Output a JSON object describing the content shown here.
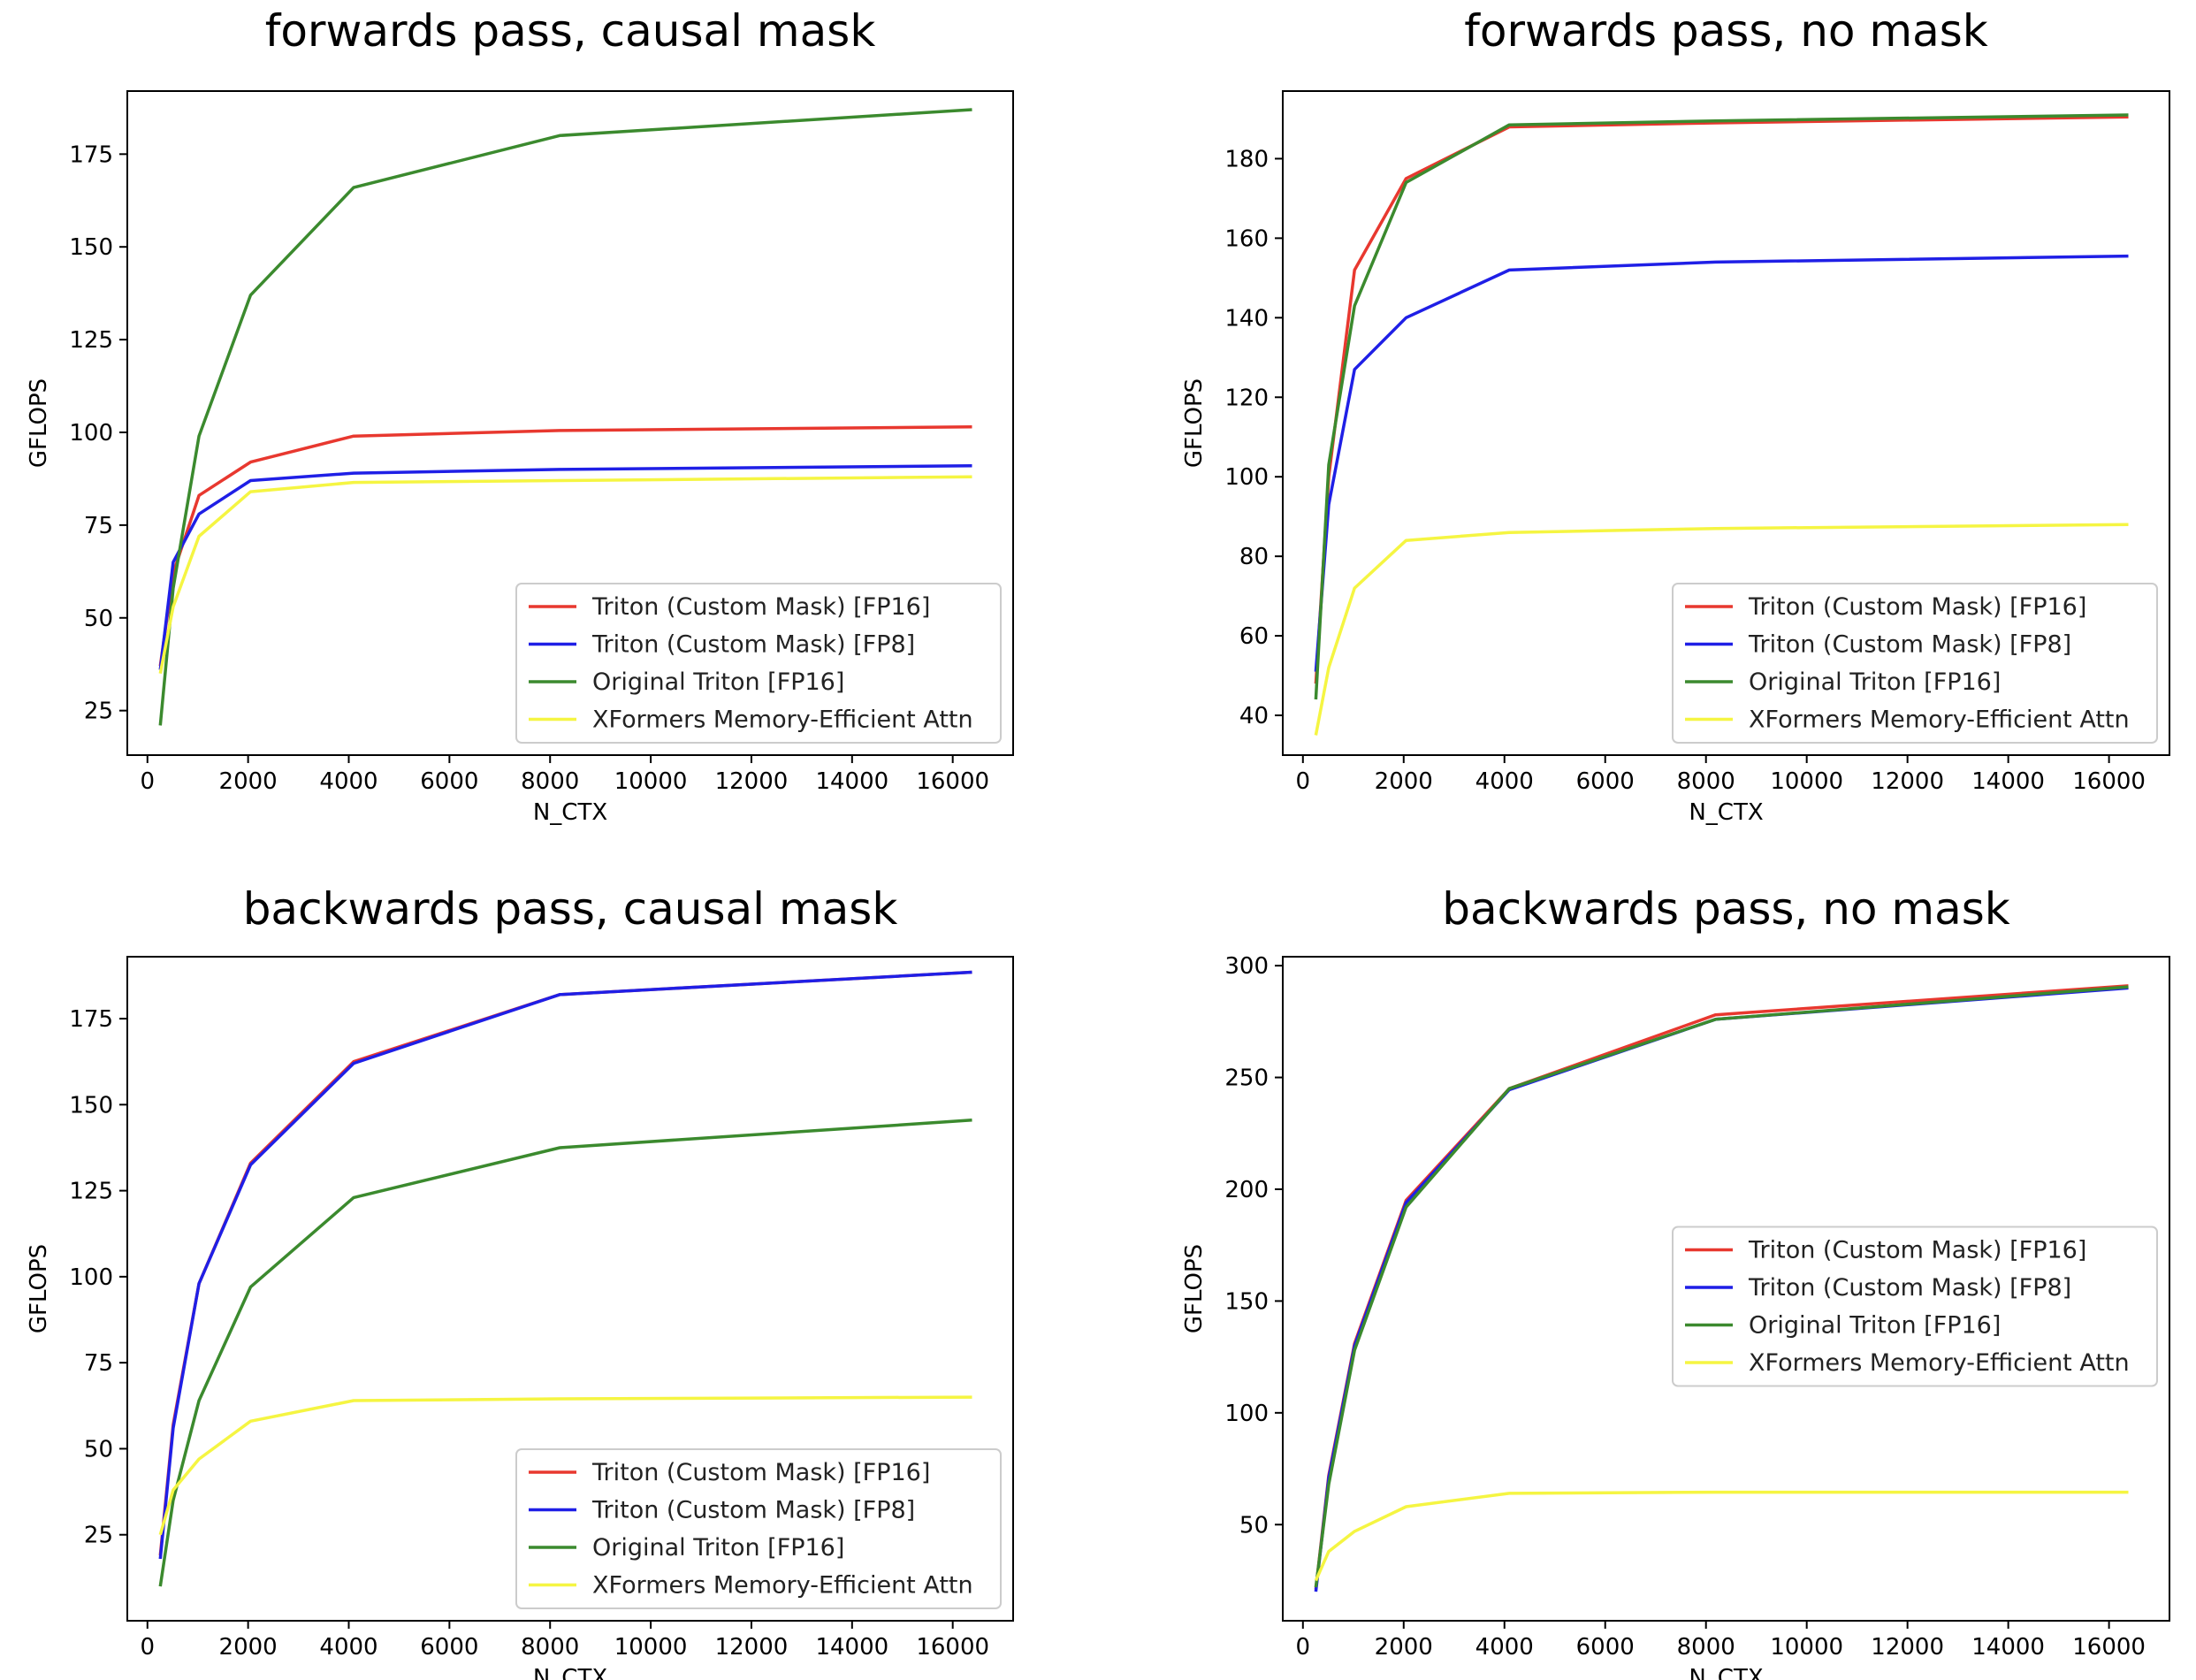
{
  "chart_data": [
    {
      "type": "line",
      "title": "forwards pass, causal mask",
      "xlabel": "N_CTX",
      "ylabel": "GFLOPS",
      "xlim": [
        -400,
        17200
      ],
      "ylim": [
        13,
        192
      ],
      "xticks": [
        0,
        2000,
        4000,
        6000,
        8000,
        10000,
        12000,
        14000,
        16000
      ],
      "yticks": [
        25,
        50,
        75,
        100,
        125,
        150,
        175
      ],
      "legend": "lower-right",
      "x": [
        256,
        512,
        1024,
        2048,
        4096,
        8192,
        16384
      ],
      "series": [
        {
          "name": "Triton (Custom Mask) [FP16]",
          "color": "#e8382f",
          "values": [
            37,
            62,
            83,
            92,
            99,
            100.5,
            101.5
          ]
        },
        {
          "name": "Triton (Custom Mask) [FP8]",
          "color": "#1f1fe6",
          "values": [
            36,
            65,
            78,
            87,
            89,
            90,
            91
          ]
        },
        {
          "name": "Original Triton [FP16]",
          "color": "#3b8a2e",
          "values": [
            21,
            58,
            99,
            137,
            166,
            180,
            187
          ]
        },
        {
          "name": "XFormers Memory-Efficient Attn",
          "color": "#f5f542",
          "values": [
            35,
            53,
            72,
            84,
            86.5,
            87,
            88
          ]
        }
      ]
    },
    {
      "type": "line",
      "title": "forwards pass, no mask",
      "xlabel": "N_CTX",
      "ylabel": "GFLOPS",
      "xlim": [
        -400,
        17200
      ],
      "ylim": [
        30,
        197
      ],
      "xticks": [
        0,
        2000,
        4000,
        6000,
        8000,
        10000,
        12000,
        14000,
        16000
      ],
      "yticks": [
        40,
        60,
        80,
        100,
        120,
        140,
        160,
        180
      ],
      "legend": "lower-right",
      "x": [
        256,
        512,
        1024,
        2048,
        4096,
        8192,
        16384
      ],
      "series": [
        {
          "name": "Triton (Custom Mask) [FP16]",
          "color": "#e8382f",
          "values": [
            48,
            100,
            152,
            175,
            188,
            189,
            190.5
          ]
        },
        {
          "name": "Triton (Custom Mask) [FP8]",
          "color": "#1f1fe6",
          "values": [
            51,
            93,
            127,
            140,
            152,
            154,
            155.5
          ]
        },
        {
          "name": "Original Triton [FP16]",
          "color": "#3b8a2e",
          "values": [
            44,
            103,
            143,
            174,
            188.5,
            189.5,
            191
          ]
        },
        {
          "name": "XFormers Memory-Efficient Attn",
          "color": "#f5f542",
          "values": [
            35,
            52,
            72,
            84,
            86,
            87,
            88
          ]
        }
      ]
    },
    {
      "type": "line",
      "title": "backwards pass, causal mask",
      "xlabel": "N_CTX",
      "ylabel": "GFLOPS",
      "xlim": [
        -400,
        17200
      ],
      "ylim": [
        0,
        193
      ],
      "xticks": [
        0,
        2000,
        4000,
        6000,
        8000,
        10000,
        12000,
        14000,
        16000
      ],
      "yticks": [
        25,
        50,
        75,
        100,
        125,
        150,
        175
      ],
      "legend": "lower-right",
      "x": [
        256,
        512,
        1024,
        2048,
        4096,
        8192,
        16384
      ],
      "series": [
        {
          "name": "Triton (Custom Mask) [FP16]",
          "color": "#e8382f",
          "values": [
            19,
            57,
            98,
            133,
            162.5,
            182,
            188.5
          ]
        },
        {
          "name": "Triton (Custom Mask) [FP8]",
          "color": "#1f1fe6",
          "values": [
            18,
            56,
            98,
            132.5,
            162,
            182,
            188.5
          ]
        },
        {
          "name": "Original Triton [FP16]",
          "color": "#3b8a2e",
          "values": [
            10,
            35,
            64,
            97,
            123,
            137.5,
            145.5
          ]
        },
        {
          "name": "XFormers Memory-Efficient Attn",
          "color": "#f5f542",
          "values": [
            25,
            38,
            47,
            58,
            64,
            64.5,
            65
          ]
        }
      ]
    },
    {
      "type": "line",
      "title": "backwards pass, no mask",
      "xlabel": "N_CTX",
      "ylabel": "GFLOPS",
      "xlim": [
        -400,
        17200
      ],
      "ylim": [
        7,
        304
      ],
      "xticks": [
        0,
        2000,
        4000,
        6000,
        8000,
        10000,
        12000,
        14000,
        16000
      ],
      "yticks": [
        50,
        100,
        150,
        200,
        250,
        300
      ],
      "legend": "center-right",
      "x": [
        256,
        512,
        1024,
        2048,
        4096,
        8192,
        16384
      ],
      "series": [
        {
          "name": "Triton (Custom Mask) [FP16]",
          "color": "#e8382f",
          "values": [
            21,
            72,
            131,
            195,
            245,
            278,
            291
          ]
        },
        {
          "name": "Triton (Custom Mask) [FP8]",
          "color": "#1f1fe6",
          "values": [
            20,
            71,
            130,
            194,
            244.5,
            276,
            290
          ]
        },
        {
          "name": "Original Triton [FP16]",
          "color": "#3b8a2e",
          "values": [
            22,
            68,
            128,
            192,
            245,
            276,
            290.5
          ]
        },
        {
          "name": "XFormers Memory-Efficient Attn",
          "color": "#f5f542",
          "values": [
            25,
            38,
            47,
            58,
            64,
            64.5,
            64.5
          ]
        }
      ]
    }
  ]
}
